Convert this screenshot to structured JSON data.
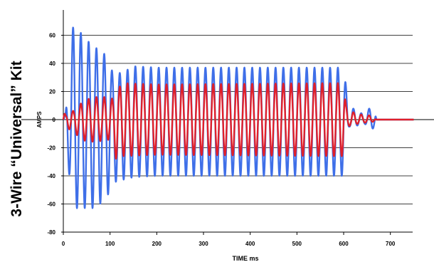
{
  "chart_data": {
    "type": "line",
    "title": "3-Wire “Universal” Kit",
    "xlabel": "TIME ms",
    "ylabel": "AMPS",
    "xlim": [
      0,
      750
    ],
    "ylim": [
      -80,
      80
    ],
    "x_ticks": [
      0,
      100,
      200,
      300,
      400,
      500,
      600,
      700
    ],
    "y_ticks": [
      60,
      40,
      20,
      0,
      -20,
      -40,
      -60,
      -80
    ],
    "grid": "horizontal",
    "legend": "none",
    "period_ms": 16.67,
    "series": [
      {
        "color": "#3f6fe8",
        "envelope": {
          "t": [
            0,
            5,
            15,
            25,
            45,
            70,
            95,
            105,
            125,
            150,
            200,
            600,
            605,
            612,
            620,
            632,
            645,
            660,
            668,
            670,
            750
          ],
          "pos": [
            0,
            5,
            62,
            68,
            58,
            51,
            45,
            34,
            33,
            38,
            37,
            37,
            24,
            8,
            8,
            5,
            4,
            10,
            5,
            0,
            0
          ],
          "neg": [
            0,
            22,
            44,
            63,
            63,
            63,
            54,
            45,
            43,
            41,
            40,
            40,
            12,
            5,
            5,
            4,
            3,
            7,
            5,
            0,
            0
          ]
        }
      },
      {
        "color": "#e0202a",
        "envelope": {
          "t": [
            0,
            5,
            25,
            45,
            70,
            95,
            100,
            115,
            125,
            200,
            600,
            605,
            615,
            630,
            650,
            660,
            670,
            750
          ],
          "pos": [
            7,
            3,
            7,
            14,
            16,
            16,
            13,
            20,
            26,
            25,
            26,
            10,
            6,
            4,
            3,
            3,
            0,
            0
          ],
          "neg": [
            2,
            5,
            10,
            15,
            16,
            14,
            16,
            30,
            26,
            25,
            26,
            6,
            4,
            3,
            2,
            2,
            0,
            0
          ]
        }
      }
    ]
  }
}
